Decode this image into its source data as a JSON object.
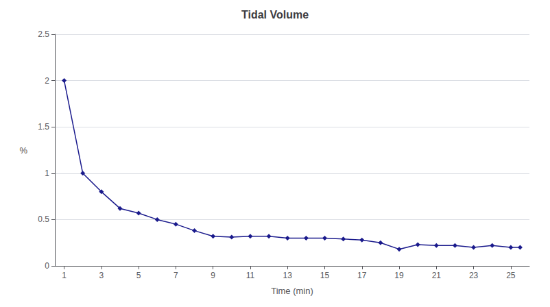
{
  "chart_data": {
    "type": "line",
    "title": "Tidal Volume",
    "xlabel": "Time (min)",
    "ylabel": "%",
    "x": [
      1,
      2,
      3,
      4,
      5,
      6,
      7,
      8,
      9,
      10,
      11,
      12,
      13,
      14,
      15,
      16,
      17,
      18,
      19,
      20,
      21,
      22,
      23,
      24,
      25,
      25.5
    ],
    "values": [
      2.0,
      1.0,
      0.8,
      0.62,
      0.57,
      0.5,
      0.45,
      0.38,
      0.32,
      0.31,
      0.32,
      0.32,
      0.3,
      0.3,
      0.3,
      0.29,
      0.28,
      0.25,
      0.18,
      0.23,
      0.22,
      0.22,
      0.2,
      0.22,
      0.2,
      0.2
    ],
    "color": "#1a1a8c",
    "marker": "diamond",
    "xlim": [
      0.5,
      26.0
    ],
    "xticks": [
      1,
      3,
      5,
      7,
      9,
      11,
      13,
      15,
      17,
      19,
      21,
      23,
      25
    ],
    "ylim": [
      0,
      2.5
    ],
    "yticks": [
      0,
      0.5,
      1,
      1.5,
      2,
      2.5
    ],
    "grid": "y"
  }
}
